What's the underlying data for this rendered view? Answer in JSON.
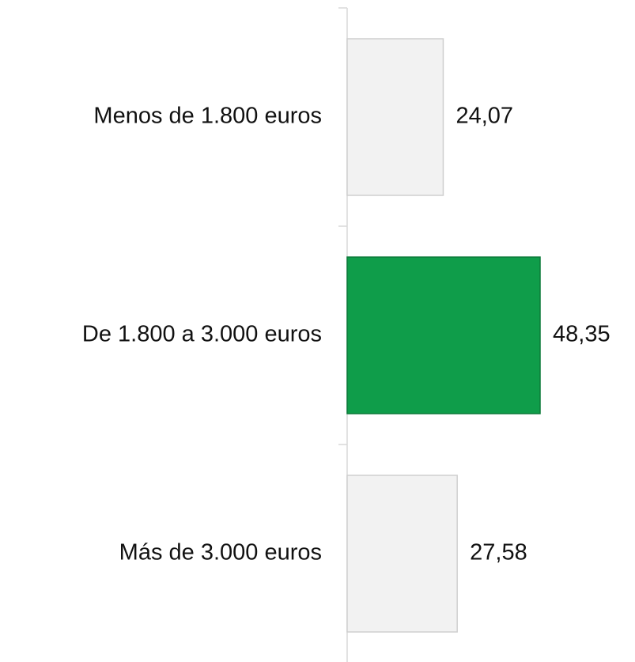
{
  "chart_data": {
    "type": "barh",
    "categories": [
      "Menos de 1.800 euros",
      "De 1.800 a 3.000 euros",
      "Más de 3.000 euros"
    ],
    "values": [
      24.07,
      48.35,
      27.58
    ],
    "value_labels": [
      "24,07",
      "48,35",
      "27,58"
    ],
    "colors": [
      "#f2f2f2",
      "#0f9d4a",
      "#f2f2f2"
    ]
  }
}
